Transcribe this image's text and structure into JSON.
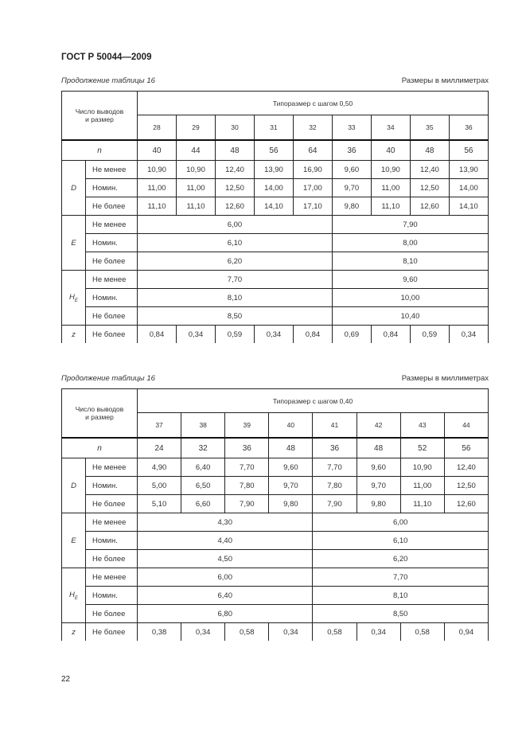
{
  "header": {
    "doc_id": "ГОСТ Р 50044—2009"
  },
  "page_number": "22",
  "tables": [
    {
      "caption": "Продолжение таблицы 16",
      "units": "Размеры в миллиметрах",
      "corner": [
        "Число выводов",
        "и размер"
      ],
      "group_header": "Типоразмер с шагом 0,50",
      "sizes": [
        "28",
        "29",
        "30",
        "31",
        "32",
        "33",
        "34",
        "35",
        "36"
      ],
      "split": 5,
      "n_label": "n",
      "n": [
        "40",
        "44",
        "48",
        "56",
        "64",
        "36",
        "40",
        "48",
        "56"
      ],
      "D": {
        "symbol": "D",
        "rows": [
          {
            "label": "Не менее",
            "values": [
              "10,90",
              "10,90",
              "12,40",
              "13,90",
              "16,90",
              "9,60",
              "10,90",
              "12,40",
              "13,90"
            ]
          },
          {
            "label": "Номин.",
            "values": [
              "11,00",
              "11,00",
              "12,50",
              "14,00",
              "17,00",
              "9,70",
              "11,00",
              "12,50",
              "14,00"
            ]
          },
          {
            "label": "Не более",
            "values": [
              "11,10",
              "11,10",
              "12,60",
              "14,10",
              "17,10",
              "9,80",
              "11,10",
              "12,60",
              "14,10"
            ]
          }
        ]
      },
      "E": {
        "symbol": "E",
        "rows": [
          {
            "label": "Не менее",
            "values": [
              "6,00",
              "7,90"
            ]
          },
          {
            "label": "Номин.",
            "values": [
              "6,10",
              "8,00"
            ]
          },
          {
            "label": "Не более",
            "values": [
              "6,20",
              "8,10"
            ]
          }
        ]
      },
      "HE": {
        "symbol": "H",
        "subscript": "E",
        "rows": [
          {
            "label": "Не менее",
            "values": [
              "7,70",
              "9,60"
            ]
          },
          {
            "label": "Номин.",
            "values": [
              "8,10",
              "10,00"
            ]
          },
          {
            "label": "Не более",
            "values": [
              "8,50",
              "10,40"
            ]
          }
        ]
      },
      "z": {
        "symbol": "z",
        "label": "Не более",
        "values": [
          "0,84",
          "0,34",
          "0,59",
          "0,34",
          "0,84",
          "0,69",
          "0,84",
          "0,59",
          "0,34"
        ]
      }
    },
    {
      "caption": "Продолжение таблицы 16",
      "units": "Размеры в миллиметрах",
      "corner": [
        "Число выводов",
        "и размер"
      ],
      "group_header": "Типоразмер с шагом 0,40",
      "sizes": [
        "37",
        "38",
        "39",
        "40",
        "41",
        "42",
        "43",
        "44"
      ],
      "split": 4,
      "n_label": "n",
      "n": [
        "24",
        "32",
        "36",
        "48",
        "36",
        "48",
        "52",
        "56"
      ],
      "D": {
        "symbol": "D",
        "rows": [
          {
            "label": "Не менее",
            "values": [
              "4,90",
              "6,40",
              "7,70",
              "9,60",
              "7,70",
              "9,60",
              "10,90",
              "12,40"
            ]
          },
          {
            "label": "Номин.",
            "values": [
              "5,00",
              "6,50",
              "7,80",
              "9,70",
              "7,80",
              "9,70",
              "11,00",
              "12,50"
            ]
          },
          {
            "label": "Не более",
            "values": [
              "5,10",
              "6,60",
              "7,90",
              "9,80",
              "7,90",
              "9,80",
              "11,10",
              "12,60"
            ]
          }
        ]
      },
      "E": {
        "symbol": "E",
        "rows": [
          {
            "label": "Не менее",
            "values": [
              "4,30",
              "6,00"
            ]
          },
          {
            "label": "Номин.",
            "values": [
              "4,40",
              "6,10"
            ]
          },
          {
            "label": "Не более",
            "values": [
              "4,50",
              "6,20"
            ]
          }
        ]
      },
      "HE": {
        "symbol": "H",
        "subscript": "E",
        "rows": [
          {
            "label": "Не менее",
            "values": [
              "6,00",
              "7,70"
            ]
          },
          {
            "label": "Номин.",
            "values": [
              "6,40",
              "8,10"
            ]
          },
          {
            "label": "Не более",
            "values": [
              "6,80",
              "8,50"
            ]
          }
        ]
      },
      "z": {
        "symbol": "z",
        "label": "Не более",
        "values": [
          "0,38",
          "0,34",
          "0,58",
          "0,34",
          "0,58",
          "0,34",
          "0,58",
          "0,94"
        ]
      }
    }
  ]
}
